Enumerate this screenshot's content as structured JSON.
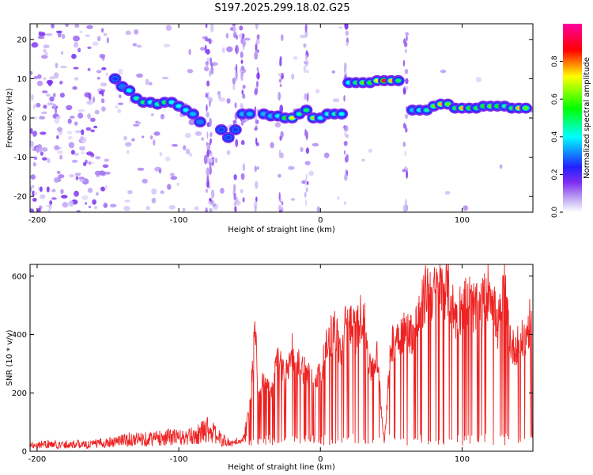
{
  "title": "S197.2025.299.18.02.G25",
  "chart_data": [
    {
      "type": "heatmap",
      "title": "S197.2025.299.18.02.G25",
      "xlabel": "Height of straight line (km)",
      "ylabel": "Frequency (Hz)",
      "xlim": [
        -205,
        150
      ],
      "ylim": [
        -24,
        24
      ],
      "x_ticks": [
        -200,
        -100,
        0,
        100
      ],
      "x_tick_labels": [
        "-200",
        "-100",
        "0",
        "100"
      ],
      "y_ticks": [
        -20,
        -10,
        0,
        10,
        20
      ],
      "y_tick_labels": [
        "-20",
        "-10",
        "0",
        "10",
        "20"
      ],
      "colorbar": {
        "label": "Normalized spectral amplitude",
        "range": [
          0,
          1
        ],
        "ticks": [
          0.0,
          0.2,
          0.4,
          0.6,
          0.8
        ],
        "tick_labels": [
          "0.0",
          "0.2",
          "0.4",
          "0.6",
          "0.8"
        ],
        "colors": [
          "#ffffff",
          "#c9b6f5",
          "#7b2cf0",
          "#2222ff",
          "#00ffff",
          "#00ff00",
          "#ffff00",
          "#ff0000",
          "#ff00a0"
        ]
      },
      "frequency_track": [
        {
          "x": -145,
          "y": 10,
          "amp": 0.25
        },
        {
          "x": -140,
          "y": 8,
          "amp": 0.3
        },
        {
          "x": -135,
          "y": 7,
          "amp": 0.4
        },
        {
          "x": -130,
          "y": 5,
          "amp": 0.45
        },
        {
          "x": -125,
          "y": 4,
          "amp": 0.5
        },
        {
          "x": -120,
          "y": 4,
          "amp": 0.4
        },
        {
          "x": -115,
          "y": 3.5,
          "amp": 0.45
        },
        {
          "x": -110,
          "y": 4,
          "amp": 0.5
        },
        {
          "x": -105,
          "y": 4,
          "amp": 0.4
        },
        {
          "x": -100,
          "y": 3,
          "amp": 0.4
        },
        {
          "x": -95,
          "y": 2,
          "amp": 0.4
        },
        {
          "x": -90,
          "y": 1,
          "amp": 0.35
        },
        {
          "x": -85,
          "y": -1,
          "amp": 0.3
        },
        {
          "x": -70,
          "y": -3,
          "amp": 0.25
        },
        {
          "x": -65,
          "y": -5,
          "amp": 0.25
        },
        {
          "x": -60,
          "y": -3,
          "amp": 0.25
        },
        {
          "x": -55,
          "y": 1,
          "amp": 0.35
        },
        {
          "x": -50,
          "y": 1,
          "amp": 0.35
        },
        {
          "x": -40,
          "y": 1,
          "amp": 0.35
        },
        {
          "x": -35,
          "y": 0.5,
          "amp": 0.35
        },
        {
          "x": -30,
          "y": 0.5,
          "amp": 0.4
        },
        {
          "x": -25,
          "y": 0,
          "amp": 0.55
        },
        {
          "x": -20,
          "y": 0,
          "amp": 0.7
        },
        {
          "x": -15,
          "y": 1,
          "amp": 0.45
        },
        {
          "x": -10,
          "y": 2,
          "amp": 0.5
        },
        {
          "x": -5,
          "y": 0,
          "amp": 0.65
        },
        {
          "x": 0,
          "y": 0,
          "amp": 0.4
        },
        {
          "x": 5,
          "y": 1,
          "amp": 0.4
        },
        {
          "x": 10,
          "y": 1,
          "amp": 0.45
        },
        {
          "x": 15,
          "y": 1,
          "amp": 0.4
        },
        {
          "x": 20,
          "y": 9,
          "amp": 0.4
        },
        {
          "x": 25,
          "y": 9,
          "amp": 0.5
        },
        {
          "x": 30,
          "y": 9,
          "amp": 0.6
        },
        {
          "x": 35,
          "y": 9,
          "amp": 0.55
        },
        {
          "x": 40,
          "y": 9.5,
          "amp": 0.7
        },
        {
          "x": 45,
          "y": 9.5,
          "amp": 0.9
        },
        {
          "x": 50,
          "y": 9.5,
          "amp": 0.75
        },
        {
          "x": 55,
          "y": 9.5,
          "amp": 0.5
        },
        {
          "x": 65,
          "y": 2,
          "amp": 0.35
        },
        {
          "x": 70,
          "y": 2,
          "amp": 0.4
        },
        {
          "x": 75,
          "y": 2,
          "amp": 0.45
        },
        {
          "x": 80,
          "y": 3,
          "amp": 0.6
        },
        {
          "x": 85,
          "y": 3.5,
          "amp": 0.75
        },
        {
          "x": 90,
          "y": 3.5,
          "amp": 0.6
        },
        {
          "x": 95,
          "y": 2.5,
          "amp": 0.5
        },
        {
          "x": 100,
          "y": 2.5,
          "amp": 0.75
        },
        {
          "x": 105,
          "y": 2.5,
          "amp": 0.55
        },
        {
          "x": 110,
          "y": 2.5,
          "amp": 0.5
        },
        {
          "x": 115,
          "y": 3,
          "amp": 0.55
        },
        {
          "x": 120,
          "y": 3,
          "amp": 0.6
        },
        {
          "x": 125,
          "y": 3,
          "amp": 0.55
        },
        {
          "x": 130,
          "y": 3,
          "amp": 0.45
        },
        {
          "x": 135,
          "y": 2.5,
          "amp": 0.5
        },
        {
          "x": 140,
          "y": 2.5,
          "amp": 0.75
        },
        {
          "x": 145,
          "y": 2.5,
          "amp": 0.6
        }
      ]
    },
    {
      "type": "line",
      "xlabel": "Height of straight line (km)",
      "ylabel": "SNR (10 * v/v)",
      "xlim": [
        -205,
        150
      ],
      "ylim": [
        0,
        640
      ],
      "x_ticks": [
        -200,
        -100,
        0,
        100
      ],
      "x_tick_labels": [
        "-200",
        "-100",
        "0",
        "100"
      ],
      "y_ticks": [
        0,
        200,
        400,
        600
      ],
      "y_tick_labels": [
        "0",
        "200",
        "400",
        "600"
      ],
      "line_color": "#ee2222",
      "series": [
        {
          "name": "SNR",
          "x": [
            -205,
            -195,
            -185,
            -175,
            -165,
            -155,
            -145,
            -135,
            -125,
            -115,
            -105,
            -95,
            -85,
            -80,
            -75,
            -70,
            -65,
            -60,
            -55,
            -50,
            -46,
            -44,
            -40,
            -35,
            -30,
            -25,
            -20,
            -15,
            -10,
            -5,
            0,
            5,
            10,
            15,
            18,
            20,
            25,
            30,
            35,
            40,
            45,
            50,
            55,
            60,
            65,
            70,
            75,
            80,
            85,
            90,
            95,
            100,
            105,
            110,
            115,
            120,
            125,
            130,
            135,
            140,
            145,
            150
          ],
          "y": [
            20,
            25,
            22,
            25,
            22,
            28,
            35,
            40,
            42,
            45,
            50,
            45,
            60,
            80,
            60,
            40,
            30,
            25,
            40,
            150,
            470,
            180,
            280,
            200,
            350,
            260,
            380,
            320,
            300,
            280,
            280,
            400,
            460,
            350,
            480,
            500,
            440,
            520,
            300,
            350,
            30,
            400,
            440,
            440,
            440,
            500,
            600,
            580,
            600,
            600,
            500,
            540,
            560,
            520,
            550,
            620,
            450,
            600,
            380,
            400,
            420,
            520
          ]
        }
      ]
    }
  ]
}
